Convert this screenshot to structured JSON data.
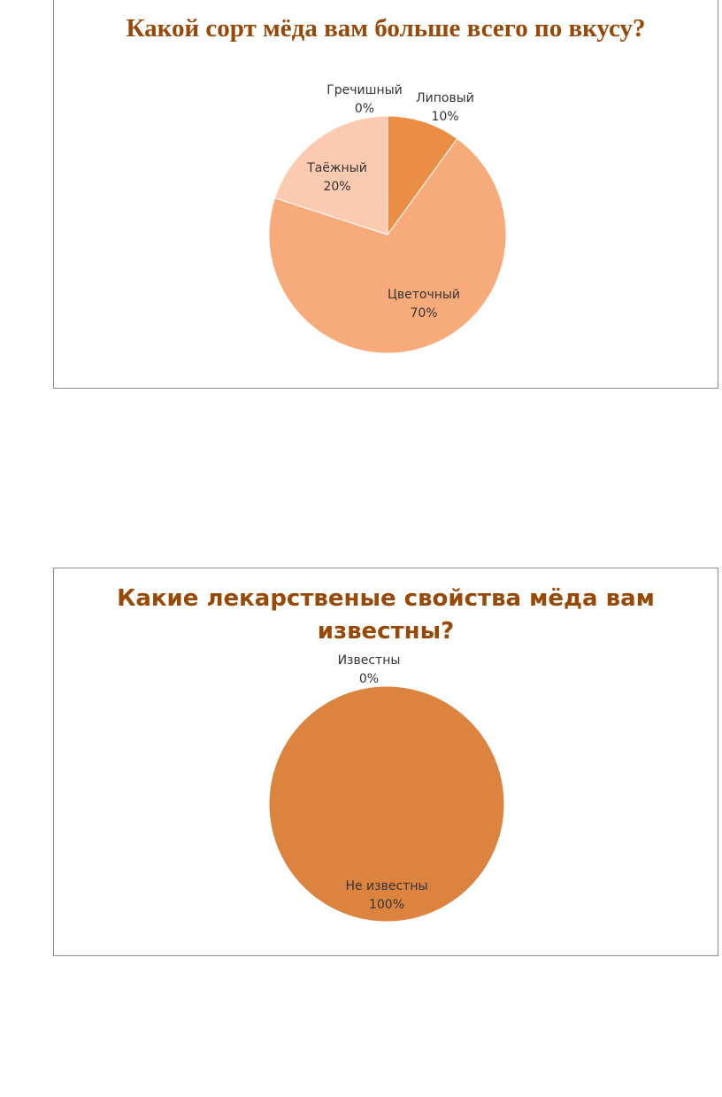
{
  "chart_data": [
    {
      "type": "pie",
      "title": "Какой сорт мёда вам больше всего по вкусу?",
      "slices": [
        {
          "name": "Липовый",
          "value": 10,
          "label": "10%",
          "color": "#e98e44"
        },
        {
          "name": "Цветочный",
          "value": 70,
          "label": "70%",
          "color": "#f8ab7a"
        },
        {
          "name": "Таёжный",
          "value": 20,
          "label": "20%",
          "color": "#fbcab0"
        },
        {
          "name": "Гречишный",
          "value": 0,
          "label": "0%",
          "color": "#f3b98c"
        }
      ]
    },
    {
      "type": "pie",
      "title": "Какие лекарственые свойства мёда вам известны?",
      "slices": [
        {
          "name": "Известны",
          "value": 0,
          "label": "0%",
          "color": "#f3b98c"
        },
        {
          "name": "Не известны",
          "value": 100,
          "label": "100%",
          "color": "#dc843f"
        }
      ]
    }
  ]
}
